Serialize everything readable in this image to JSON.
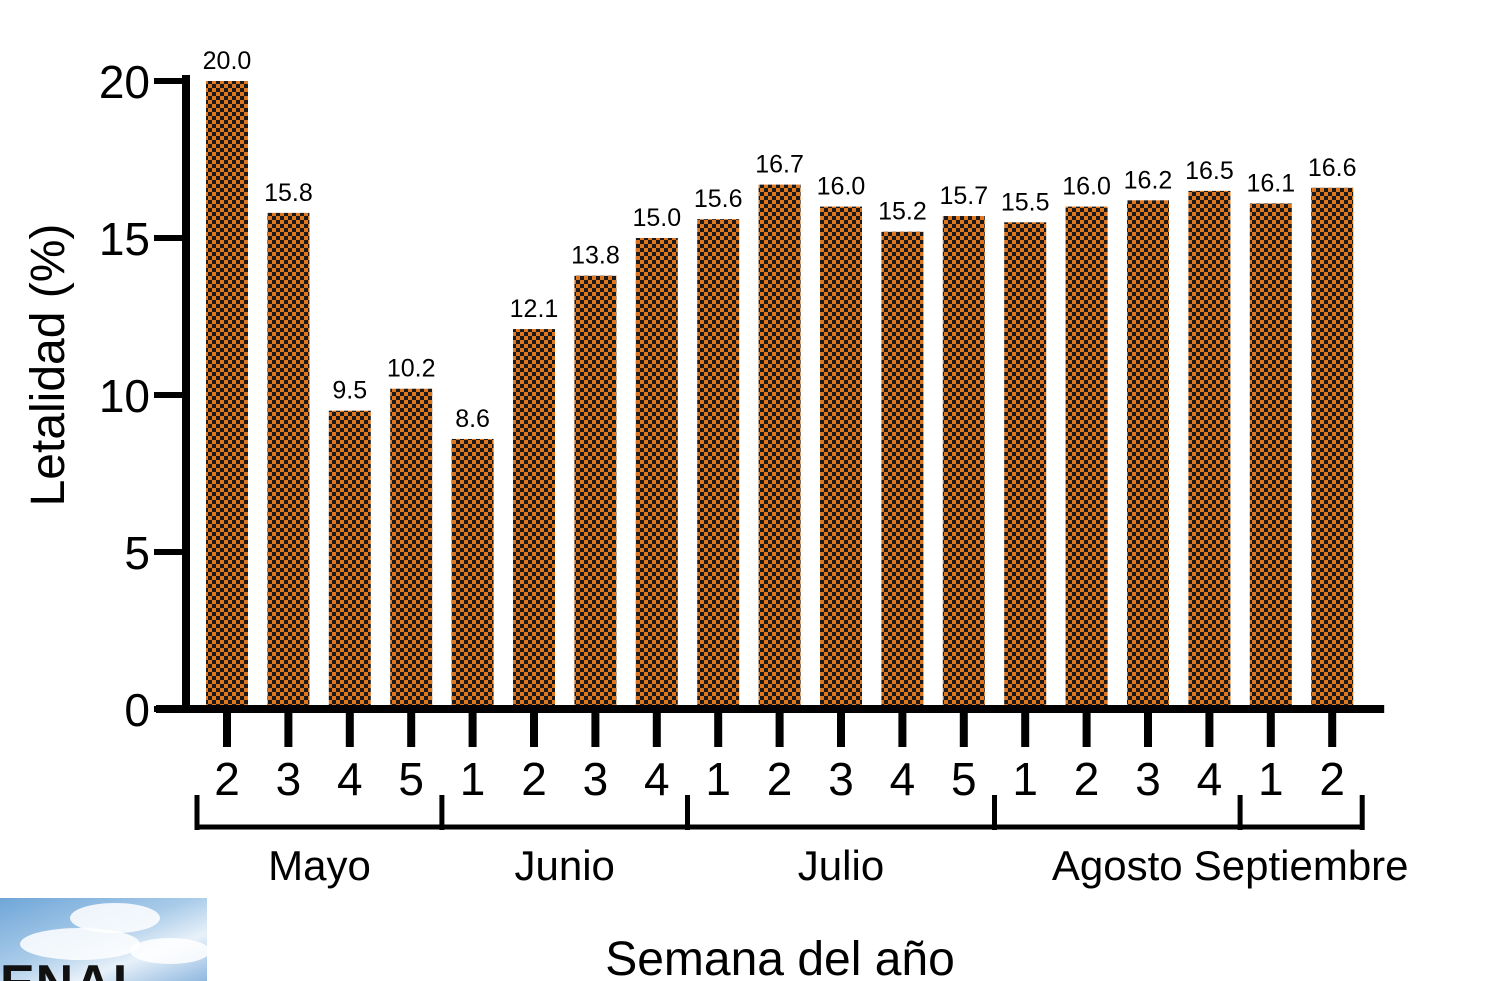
{
  "chart_data": {
    "type": "bar",
    "ylabel": "Letalidad (%)",
    "xlabel": "Semana del año",
    "ylim": [
      0,
      20
    ],
    "yticks": [
      0,
      5,
      10,
      15,
      20
    ],
    "bar_color": "#e0761e",
    "pattern_color": "#1a1a1a",
    "categories": [
      "2",
      "3",
      "4",
      "5",
      "1",
      "2",
      "3",
      "4",
      "1",
      "2",
      "3",
      "4",
      "5",
      "1",
      "2",
      "3",
      "4",
      "1",
      "2"
    ],
    "values": [
      20.0,
      15.8,
      9.5,
      10.2,
      8.6,
      12.1,
      13.8,
      15.0,
      15.6,
      16.7,
      16.0,
      15.2,
      15.7,
      15.5,
      16.0,
      16.2,
      16.5,
      16.1,
      16.6
    ],
    "data_labels": [
      "20.0",
      "15.8",
      "9.5",
      "10.2",
      "8.6",
      "12.1",
      "13.8",
      "15.0",
      "15.6",
      "16.7",
      "16.0",
      "15.2",
      "15.7",
      "15.5",
      "16.0",
      "16.2",
      "16.5",
      "16.1",
      "16.6"
    ],
    "groups": [
      {
        "name": "Mayo",
        "count": 4
      },
      {
        "name": "Junio",
        "count": 4
      },
      {
        "name": "Julio",
        "count": 5
      },
      {
        "name": "Agosto",
        "count": 4
      },
      {
        "name": "Septiembre",
        "count": 2
      }
    ]
  },
  "logo": {
    "text": "ENAL"
  }
}
